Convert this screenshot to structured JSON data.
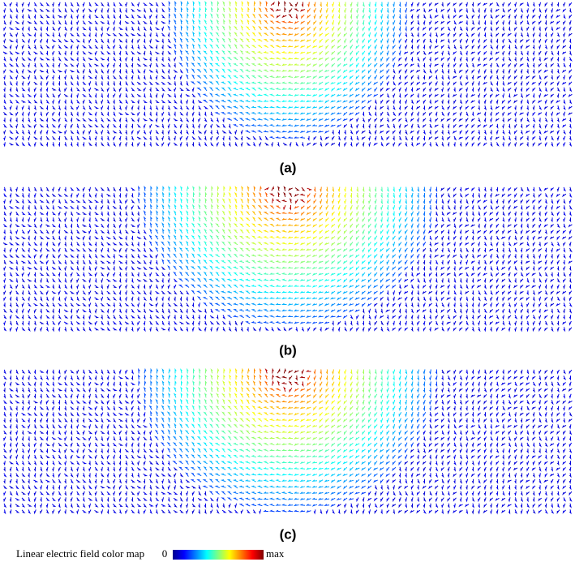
{
  "panels": [
    {
      "label": "(a)"
    },
    {
      "label": "(b)"
    },
    {
      "label": "(c)"
    }
  ],
  "colorbar": {
    "label": "Linear electric field color map",
    "min_label": "0",
    "max_label": "max"
  }
}
